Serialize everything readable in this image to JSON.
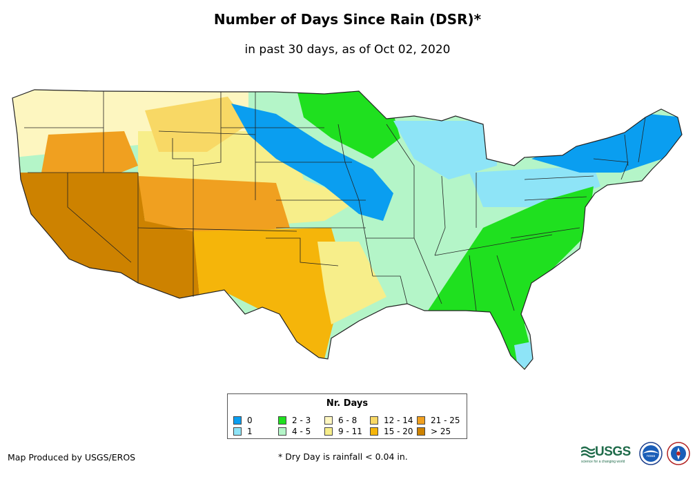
{
  "title": "Number of Days Since Rain (DSR)*",
  "subtitle": "in past 30 days, as of Oct 02, 2020",
  "legend": {
    "title": "Nr. Days",
    "items": [
      {
        "label": "0",
        "color": "#0a9ef0"
      },
      {
        "label": "1",
        "color": "#8ee4f7"
      },
      {
        "label": "2 - 3",
        "color": "#1fe01f"
      },
      {
        "label": "4 - 5",
        "color": "#b4f5c8"
      },
      {
        "label": "6 - 8",
        "color": "#fdf6c0"
      },
      {
        "label": "9 - 11",
        "color": "#f7ee8a"
      },
      {
        "label": "12 - 14",
        "color": "#f8d865"
      },
      {
        "label": "15 - 20",
        "color": "#f5b50a"
      },
      {
        "label": "21 - 25",
        "color": "#f0a020"
      },
      {
        "label": "> 25",
        "color": "#cd8200"
      }
    ]
  },
  "credit": "Map Produced by USGS/EROS",
  "footnote": "* Dry Day is rainfall < 0.04 in.",
  "logos": {
    "usgs": "USGS",
    "usgs_tagline": "science for a changing world",
    "noaa": "noaa-logo",
    "nws": "nws-logo"
  }
}
